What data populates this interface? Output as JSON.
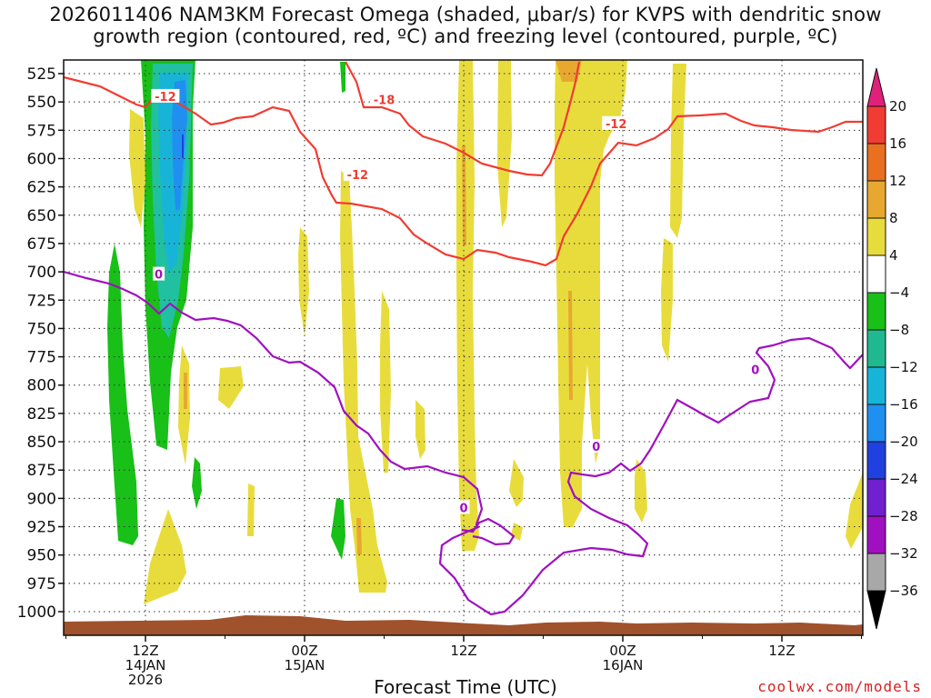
{
  "chart_data": {
    "type": "heatmap",
    "title_line1": "2026011406 NAM3KM Forecast Omega (shaded, μbar/s) for KVPS with dendritic snow",
    "title_line2": "growth region (contoured, red, ºC) and freezing level (contoured, purple, ºC)",
    "xlabel": "Forecast Time (UTC)",
    "credit": "coolwx.com/models",
    "y_ticks": [
      525,
      550,
      575,
      600,
      625,
      650,
      675,
      700,
      725,
      750,
      775,
      800,
      825,
      850,
      875,
      900,
      925,
      950,
      975,
      1000
    ],
    "x_ticks": [
      {
        "hour": 6,
        "l1": "12Z",
        "l2": "14JAN",
        "l3": "2026"
      },
      {
        "hour": 18,
        "l1": "00Z",
        "l2": "15JAN",
        "l3": ""
      },
      {
        "hour": 30,
        "l1": "12Z",
        "l2": "",
        "l3": ""
      },
      {
        "hour": 42,
        "l1": "00Z",
        "l2": "16JAN",
        "l3": ""
      },
      {
        "hour": 54,
        "l1": "12Z",
        "l2": "",
        "l3": ""
      }
    ],
    "x_range_hours": [
      0,
      60
    ],
    "y_range_mb": [
      1000,
      525
    ],
    "colorbar": {
      "labels": [
        "20",
        "16",
        "12",
        "8",
        "4",
        "−4",
        "−8",
        "−12",
        "−16",
        "−20",
        "−24",
        "−28",
        "−32",
        "−36"
      ],
      "colors": [
        "#e0207a",
        "#f03c32",
        "#e87020",
        "#e8a830",
        "#e8dc3c",
        "#ffffff",
        "#18c018",
        "#20b890",
        "#18b4d8",
        "#2090f0",
        "#2040e0",
        "#7020d0",
        "#a010c0",
        "#a8a8a8",
        "#000000"
      ]
    },
    "dendritic_contours": [
      {
        "label": "-12",
        "hour": 7.5,
        "mb": 545
      },
      {
        "label": "-18",
        "hour": 24,
        "mb": 548
      },
      {
        "label": "-12",
        "hour": 22,
        "mb": 614
      },
      {
        "label": "-12",
        "hour": 41.5,
        "mb": 569
      }
    ],
    "freezing_contours": [
      {
        "label": "0",
        "hour": 7,
        "mb": 702
      },
      {
        "label": "0",
        "hour": 30,
        "mb": 908
      },
      {
        "label": "0",
        "hour": 40,
        "mb": 854
      },
      {
        "label": "0",
        "hour": 52,
        "mb": 786
      }
    ]
  }
}
